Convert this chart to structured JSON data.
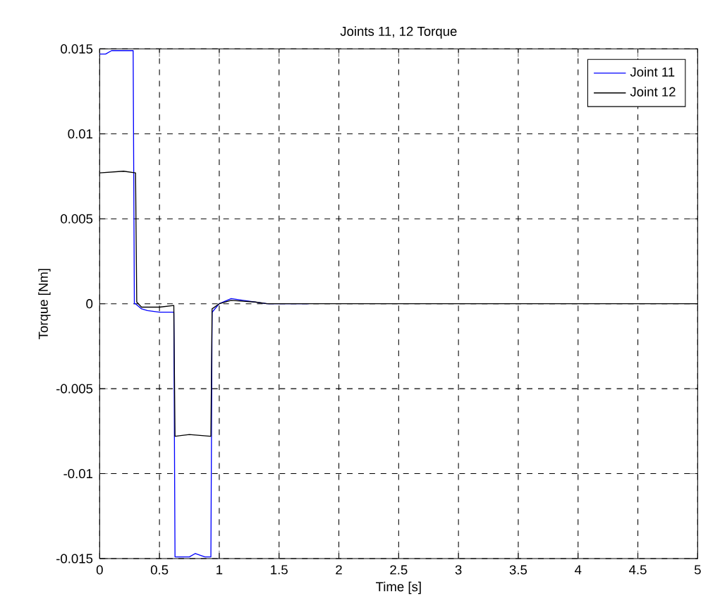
{
  "chart_data": {
    "type": "line",
    "title": "Joints 11, 12 Torque",
    "xlabel": "Time [s]",
    "ylabel": "Torque [Nm]",
    "xlim": [
      0,
      5
    ],
    "ylim": [
      -0.015,
      0.015
    ],
    "xticks": [
      0,
      0.5,
      1,
      1.5,
      2,
      2.5,
      3,
      3.5,
      4,
      4.5,
      5
    ],
    "yticks": [
      -0.015,
      -0.01,
      -0.005,
      0,
      0.005,
      0.01,
      0.015
    ],
    "grid": true,
    "legend": "top right",
    "line_style": "solid",
    "marker": "none",
    "series": [
      {
        "name": "Joint 11",
        "color": "#0000ff",
        "x": [
          0,
          0.05,
          0.1,
          0.2,
          0.28,
          0.29,
          0.3,
          0.35,
          0.4,
          0.5,
          0.62,
          0.63,
          0.75,
          0.8,
          0.88,
          0.93,
          0.94,
          1.0,
          1.1,
          1.2,
          1.4,
          1.75
        ],
        "values": [
          0.0147,
          0.0147,
          0.0149,
          0.0149,
          0.0149,
          0.0,
          0.0,
          -0.0003,
          -0.0004,
          -0.0005,
          -0.0005,
          -0.0149,
          -0.0149,
          -0.0147,
          -0.0149,
          -0.0149,
          -0.0005,
          0,
          0.0003,
          0.0002,
          0,
          0
        ]
      },
      {
        "name": "Joint 12",
        "color": "#000000",
        "x": [
          0,
          0.2,
          0.3,
          0.31,
          0.35,
          0.5,
          0.62,
          0.63,
          0.75,
          0.93,
          0.94,
          1.0,
          1.1,
          1.3,
          1.4,
          5
        ],
        "values": [
          0.0077,
          0.0078,
          0.0077,
          0.0001,
          -0.0002,
          -0.0002,
          -0.0001,
          -0.0078,
          -0.0077,
          -0.0078,
          -0.0003,
          0,
          0.0002,
          0.0001,
          0,
          0
        ]
      }
    ]
  }
}
